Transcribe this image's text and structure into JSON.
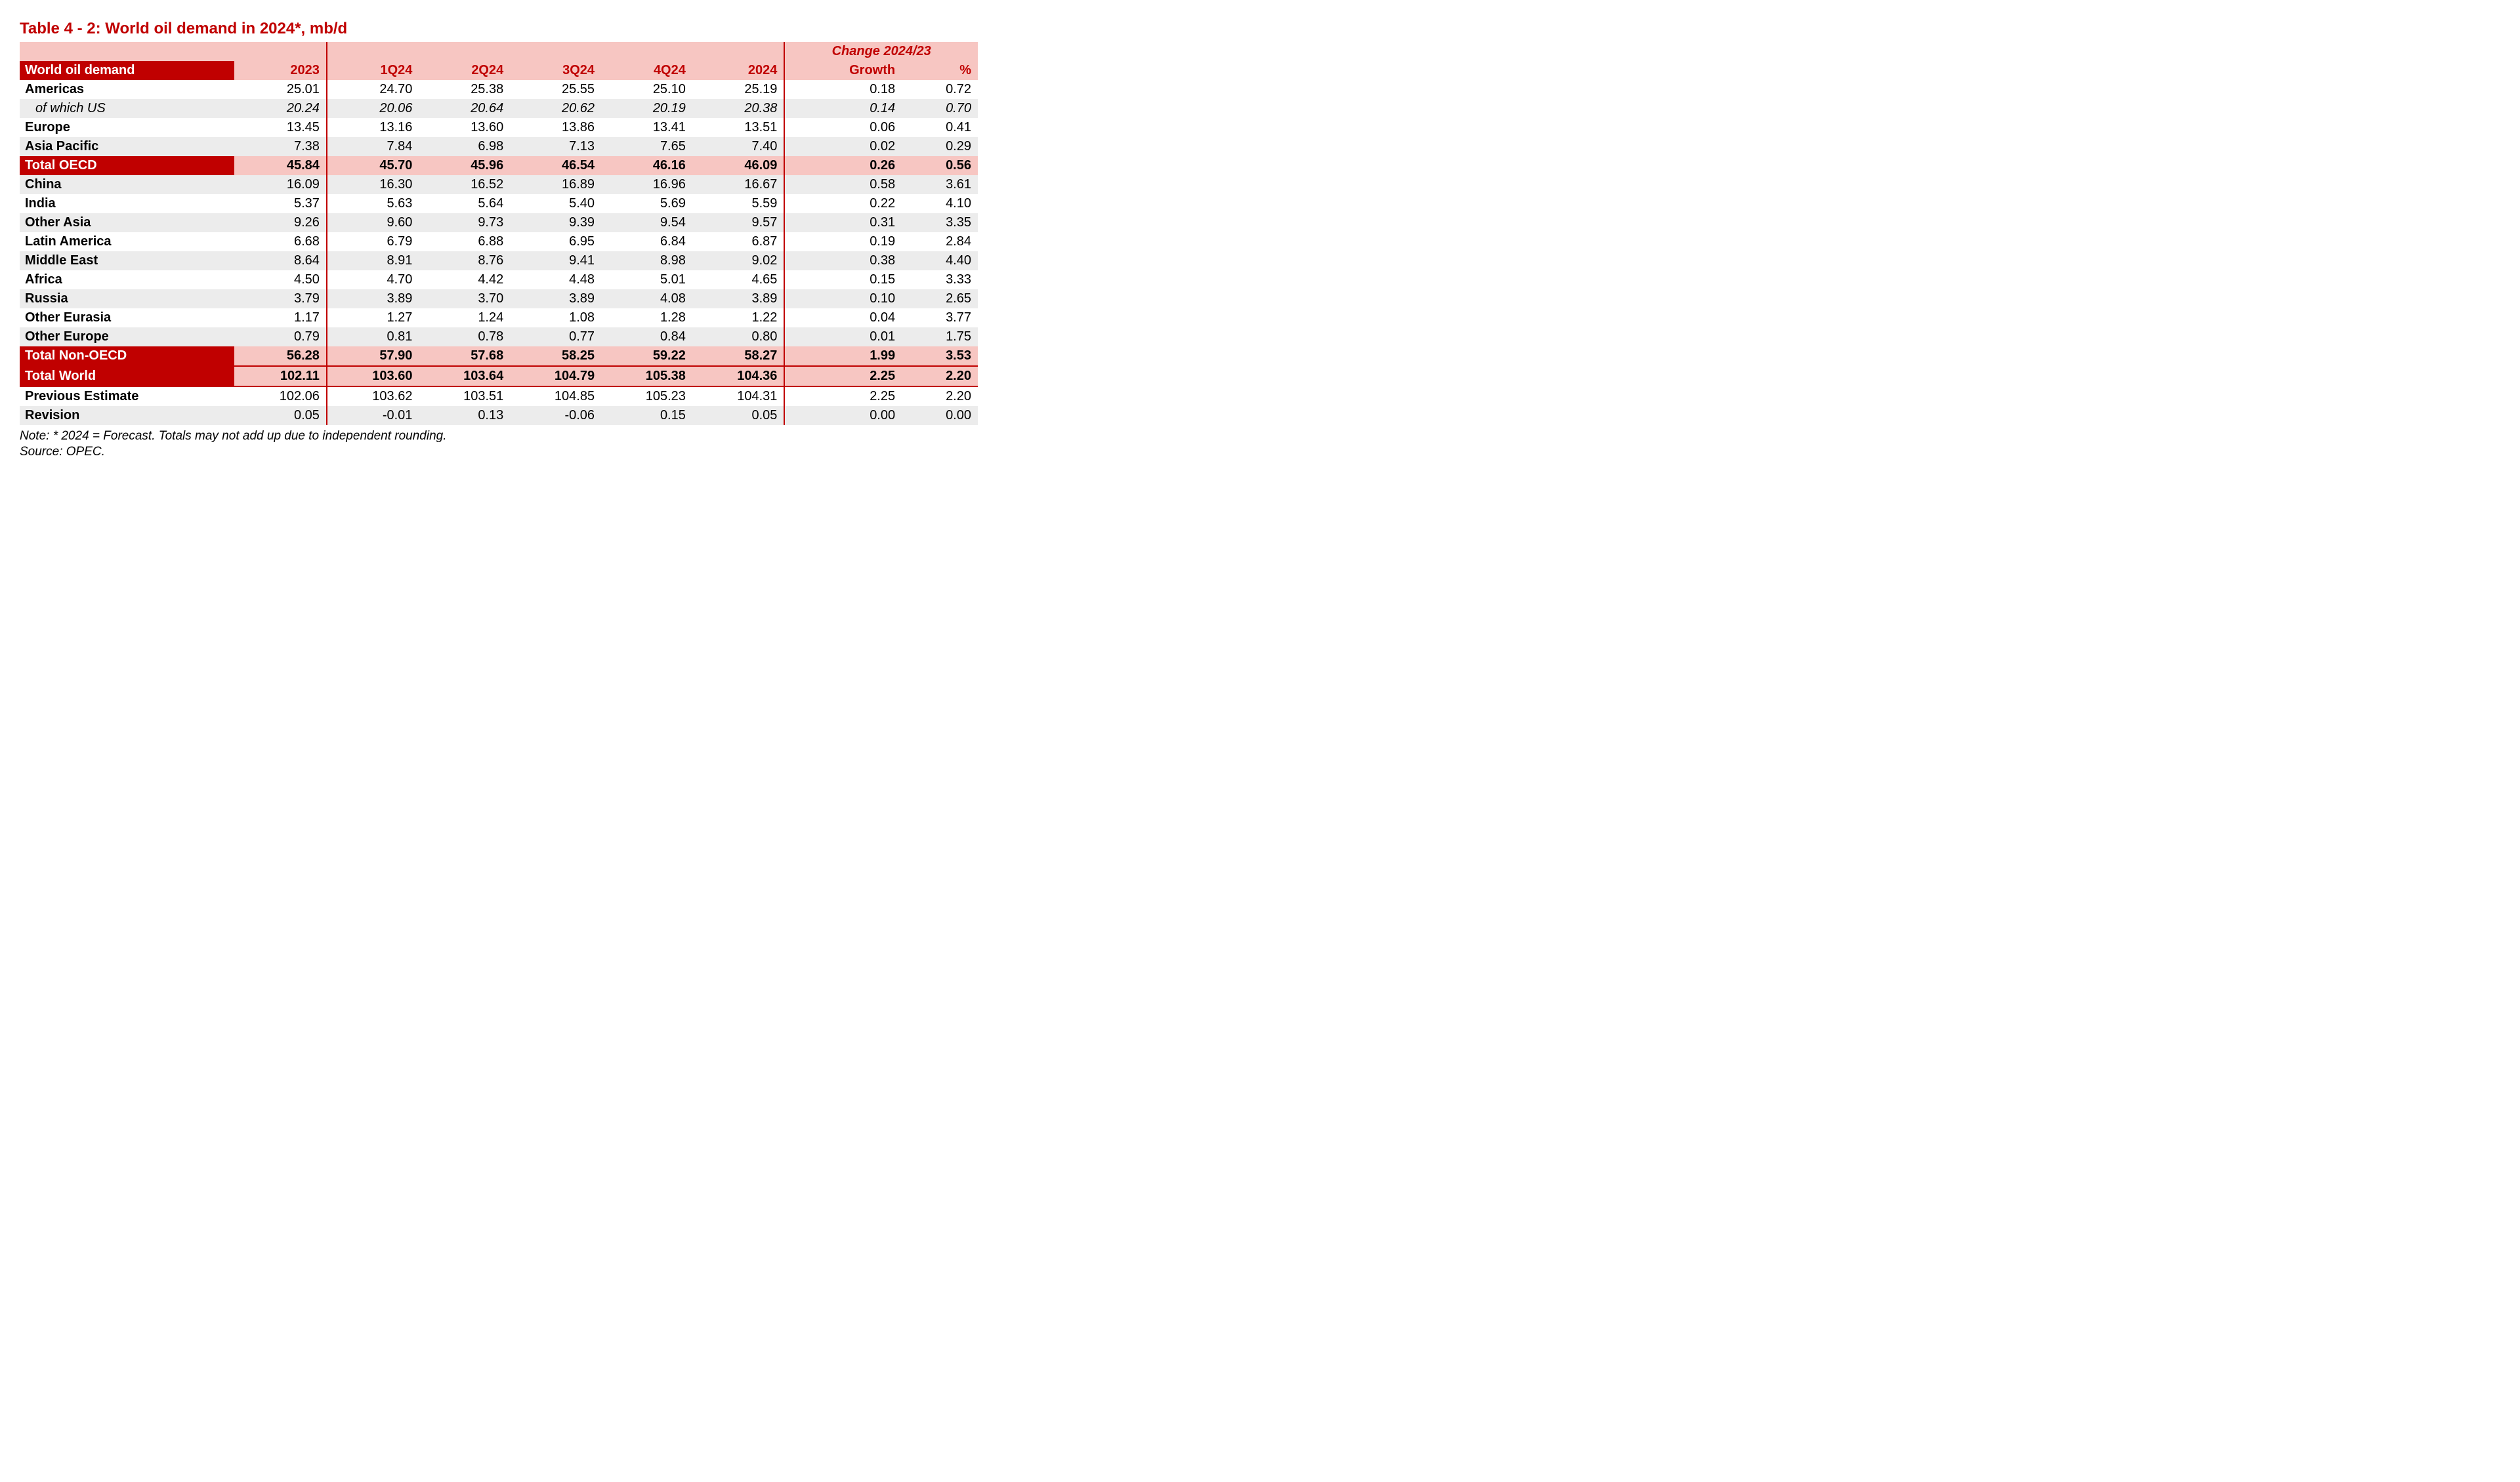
{
  "title": "Table 4 - 2: World oil demand in 2024*, mb/d",
  "headers": {
    "change_span": "Change 2024/23",
    "rowlabel": "World oil demand",
    "cols": [
      "2023",
      "1Q24",
      "2Q24",
      "3Q24",
      "4Q24",
      "2024",
      "Growth",
      "%"
    ]
  },
  "rows": [
    {
      "type": "data",
      "label": "Americas",
      "v": [
        "25.01",
        "24.70",
        "25.38",
        "25.55",
        "25.10",
        "25.19",
        "0.18",
        "0.72"
      ]
    },
    {
      "type": "sub",
      "label": "of which US",
      "v": [
        "20.24",
        "20.06",
        "20.64",
        "20.62",
        "20.19",
        "20.38",
        "0.14",
        "0.70"
      ]
    },
    {
      "type": "data",
      "label": "Europe",
      "v": [
        "13.45",
        "13.16",
        "13.60",
        "13.86",
        "13.41",
        "13.51",
        "0.06",
        "0.41"
      ]
    },
    {
      "type": "data",
      "label": "Asia Pacific",
      "v": [
        "7.38",
        "7.84",
        "6.98",
        "7.13",
        "7.65",
        "7.40",
        "0.02",
        "0.29"
      ]
    },
    {
      "type": "section",
      "label": "Total OECD",
      "v": [
        "45.84",
        "45.70",
        "45.96",
        "46.54",
        "46.16",
        "46.09",
        "0.26",
        "0.56"
      ]
    },
    {
      "type": "data",
      "label": "China",
      "v": [
        "16.09",
        "16.30",
        "16.52",
        "16.89",
        "16.96",
        "16.67",
        "0.58",
        "3.61"
      ]
    },
    {
      "type": "data",
      "label": "India",
      "v": [
        "5.37",
        "5.63",
        "5.64",
        "5.40",
        "5.69",
        "5.59",
        "0.22",
        "4.10"
      ]
    },
    {
      "type": "data",
      "label": "Other Asia",
      "v": [
        "9.26",
        "9.60",
        "9.73",
        "9.39",
        "9.54",
        "9.57",
        "0.31",
        "3.35"
      ]
    },
    {
      "type": "data",
      "label": "Latin America",
      "v": [
        "6.68",
        "6.79",
        "6.88",
        "6.95",
        "6.84",
        "6.87",
        "0.19",
        "2.84"
      ]
    },
    {
      "type": "data",
      "label": "Middle East",
      "v": [
        "8.64",
        "8.91",
        "8.76",
        "9.41",
        "8.98",
        "9.02",
        "0.38",
        "4.40"
      ]
    },
    {
      "type": "data",
      "label": "Africa",
      "v": [
        "4.50",
        "4.70",
        "4.42",
        "4.48",
        "5.01",
        "4.65",
        "0.15",
        "3.33"
      ]
    },
    {
      "type": "data",
      "label": "Russia",
      "v": [
        "3.79",
        "3.89",
        "3.70",
        "3.89",
        "4.08",
        "3.89",
        "0.10",
        "2.65"
      ]
    },
    {
      "type": "data",
      "label": "Other Eurasia",
      "v": [
        "1.17",
        "1.27",
        "1.24",
        "1.08",
        "1.28",
        "1.22",
        "0.04",
        "3.77"
      ]
    },
    {
      "type": "data",
      "label": "Other Europe",
      "v": [
        "0.79",
        "0.81",
        "0.78",
        "0.77",
        "0.84",
        "0.80",
        "0.01",
        "1.75"
      ]
    },
    {
      "type": "section",
      "label": "Total Non-OECD",
      "v": [
        "56.28",
        "57.90",
        "57.68",
        "58.25",
        "59.22",
        "58.27",
        "1.99",
        "3.53"
      ]
    },
    {
      "type": "totalworld",
      "label": "Total World",
      "v": [
        "102.11",
        "103.60",
        "103.64",
        "104.79",
        "105.38",
        "104.36",
        "2.25",
        "2.20"
      ]
    },
    {
      "type": "data",
      "label": "Previous Estimate",
      "v": [
        "102.06",
        "103.62",
        "103.51",
        "104.85",
        "105.23",
        "104.31",
        "2.25",
        "2.20"
      ]
    },
    {
      "type": "data",
      "label": "Revision",
      "v": [
        "0.05",
        "-0.01",
        "0.13",
        "-0.06",
        "0.15",
        "0.05",
        "0.00",
        "0.00"
      ]
    }
  ],
  "notes": [
    "Note: * 2024 = Forecast. Totals may not add up due to independent rounding.",
    "Source: OPEC."
  ],
  "style": {
    "stripe_bg": "#ececec",
    "red": "#c00000",
    "pink": "#f7c6c2"
  }
}
